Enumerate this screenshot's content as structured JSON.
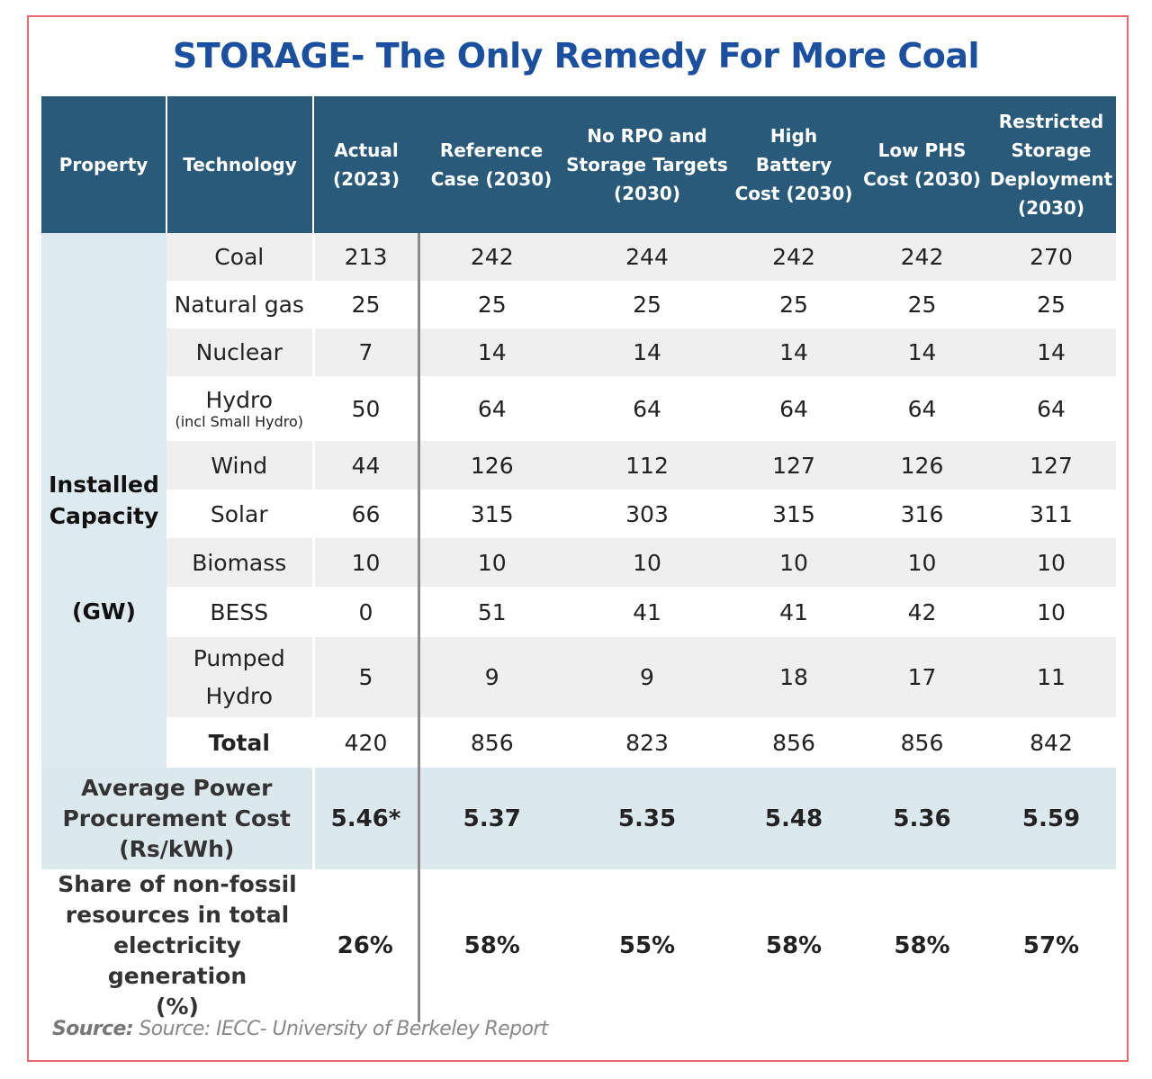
{
  "title": "STORAGE- The Only Remedy For More Coal",
  "colors": {
    "header_bg": "#2a5a7a",
    "title": "#1b4fa0",
    "frame": "#e8686c",
    "property_bg": "#ddeaf0"
  },
  "chart_data": {
    "type": "table",
    "headers": {
      "property": "Property",
      "technology": "Technology",
      "scenarios": [
        [
          "Actual",
          "(2023)"
        ],
        [
          "Reference",
          "Case (2030)"
        ],
        [
          "No RPO and",
          "Storage Targets",
          "(2030)"
        ],
        [
          "High Battery",
          "Cost (2030)"
        ],
        [
          "Low PHS",
          "Cost (2030)"
        ],
        [
          "Restricted",
          "Storage",
          "Deployment",
          "(2030)"
        ]
      ]
    },
    "property_label": [
      "Installed",
      "Capacity"
    ],
    "property_unit": "(GW)",
    "rows": [
      {
        "tech": "Coal",
        "values": [
          "213",
          "242",
          "244",
          "242",
          "242",
          "270"
        ]
      },
      {
        "tech": "Natural gas",
        "values": [
          "25",
          "25",
          "25",
          "25",
          "25",
          "25"
        ]
      },
      {
        "tech": "Nuclear",
        "values": [
          "7",
          "14",
          "14",
          "14",
          "14",
          "14"
        ]
      },
      {
        "tech": "Hydro",
        "sub": "(incl Small Hydro)",
        "values": [
          "50",
          "64",
          "64",
          "64",
          "64",
          "64"
        ]
      },
      {
        "tech": "Wind",
        "values": [
          "44",
          "126",
          "112",
          "127",
          "126",
          "127"
        ]
      },
      {
        "tech": "Solar",
        "values": [
          "66",
          "315",
          "303",
          "315",
          "316",
          "311"
        ]
      },
      {
        "tech": "Biomass",
        "values": [
          "10",
          "10",
          "10",
          "10",
          "10",
          "10"
        ]
      },
      {
        "tech": "BESS",
        "values": [
          "0",
          "51",
          "41",
          "41",
          "42",
          "10"
        ]
      },
      {
        "tech": "Pumped",
        "tech2": "Hydro",
        "values": [
          "5",
          "9",
          "9",
          "18",
          "17",
          "11"
        ]
      },
      {
        "tech": "Total",
        "values": [
          "420",
          "856",
          "823",
          "856",
          "856",
          "842"
        ]
      }
    ],
    "cost": {
      "label": [
        "Average Power",
        "Procurement Cost",
        "(Rs/kWh)"
      ],
      "values": [
        "5.46*",
        "5.37",
        "5.35",
        "5.48",
        "5.36",
        "5.59"
      ]
    },
    "share": {
      "label": [
        "Share of non-fossil",
        "resources in total",
        "electricity generation",
        "(%)"
      ],
      "values": [
        "26%",
        "58%",
        "55%",
        "58%",
        "58%",
        "57%"
      ]
    }
  },
  "source": {
    "prefix": "Source:",
    "text": " Source: IECC- University of Berkeley Report"
  }
}
